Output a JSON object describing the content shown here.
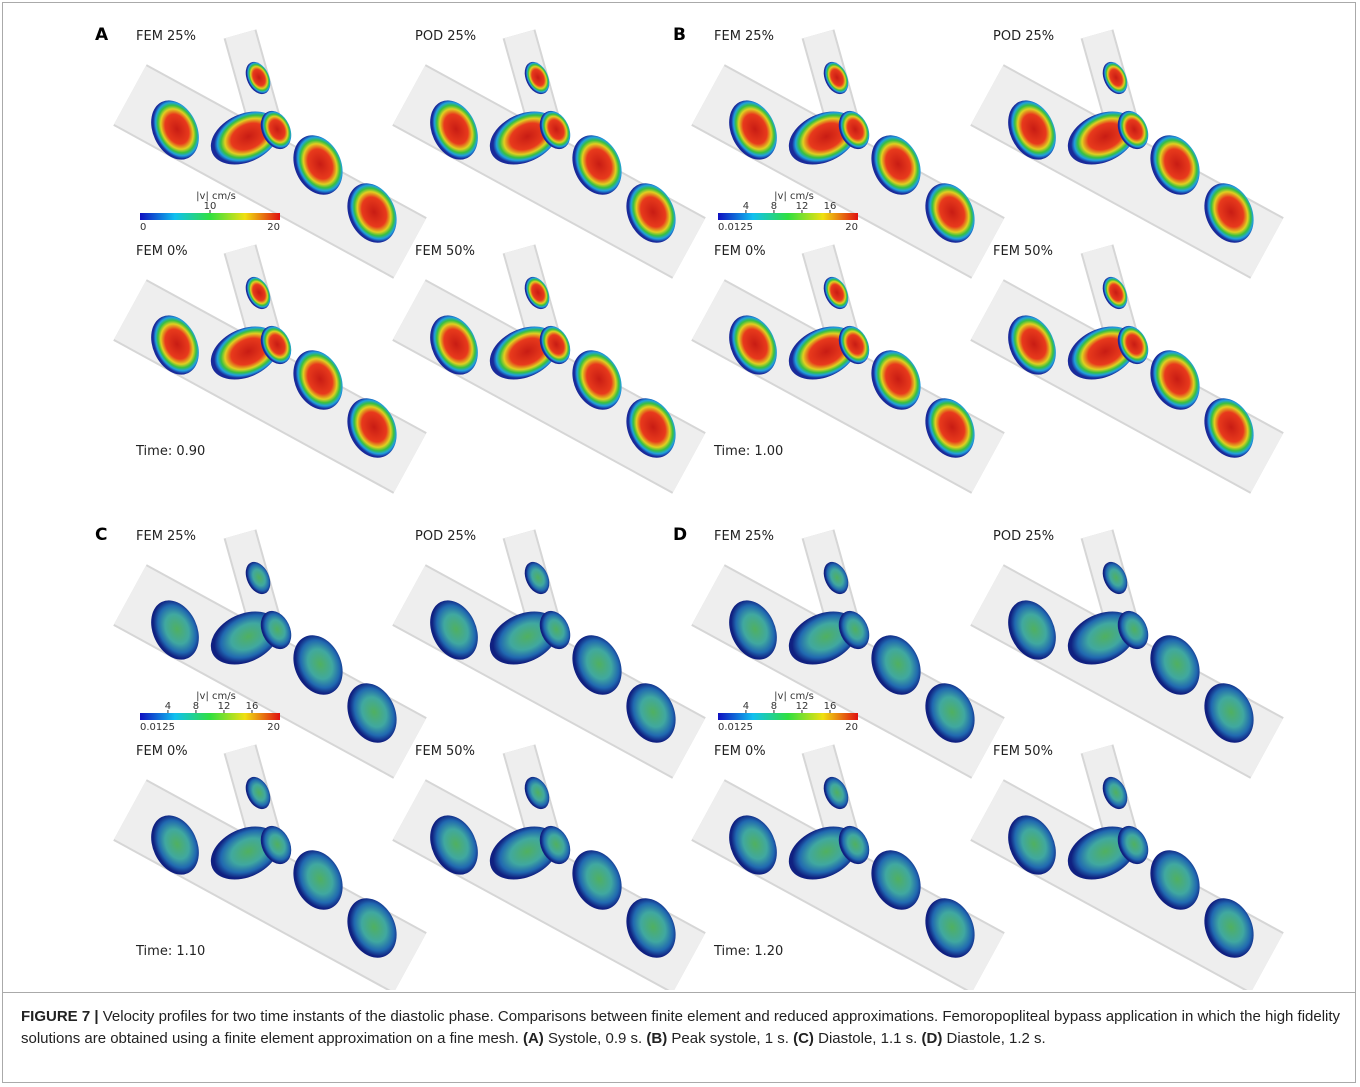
{
  "panels": [
    {
      "letter": "A",
      "views": [
        "FEM 25%",
        "POD 25%",
        "FEM 0%",
        "FEM 50%"
      ],
      "colorbar": {
        "title": "|v| cm/s",
        "min": 0,
        "max": 20,
        "ticks": [
          10
        ]
      },
      "time": "Time: 0.90"
    },
    {
      "letter": "B",
      "views": [
        "FEM 25%",
        "POD 25%",
        "FEM 0%",
        "FEM 50%"
      ],
      "colorbar": {
        "title": "|v| cm/s",
        "min": 0.0125,
        "max": 20,
        "ticks": [
          4,
          8,
          12,
          16
        ]
      },
      "time": "Time: 1.00"
    },
    {
      "letter": "C",
      "views": [
        "FEM 25%",
        "POD 25%",
        "FEM 0%",
        "FEM 50%"
      ],
      "colorbar": {
        "title": "|v| cm/s",
        "min": 0.0125,
        "max": 20,
        "ticks": [
          4,
          8,
          12,
          16
        ]
      },
      "time": "Time: 1.10"
    },
    {
      "letter": "D",
      "views": [
        "FEM 25%",
        "POD 25%",
        "FEM 0%",
        "FEM 50%"
      ],
      "colorbar": {
        "title": "|v| cm/s",
        "min": 0.0125,
        "max": 20,
        "ticks": [
          4,
          8,
          12,
          16
        ]
      },
      "time": "Time: 1.20"
    }
  ],
  "caption": {
    "label": "FIGURE 7 |",
    "text": "Velocity profiles for two time instants of the diastolic phase. Comparisons between finite element and reduced approximations. Femoropopliteal bypass application in which the high fidelity solutions are obtained using a finite element approximation on a fine mesh.",
    "parts": [
      {
        "label": "(A)",
        "text": "Systole, 0.9 s."
      },
      {
        "label": "(B)",
        "text": "Peak systole, 1 s."
      },
      {
        "label": "(C)",
        "text": "Diastole, 1.1 s."
      },
      {
        "label": "(D)",
        "text": "Diastole, 1.2 s."
      }
    ]
  }
}
